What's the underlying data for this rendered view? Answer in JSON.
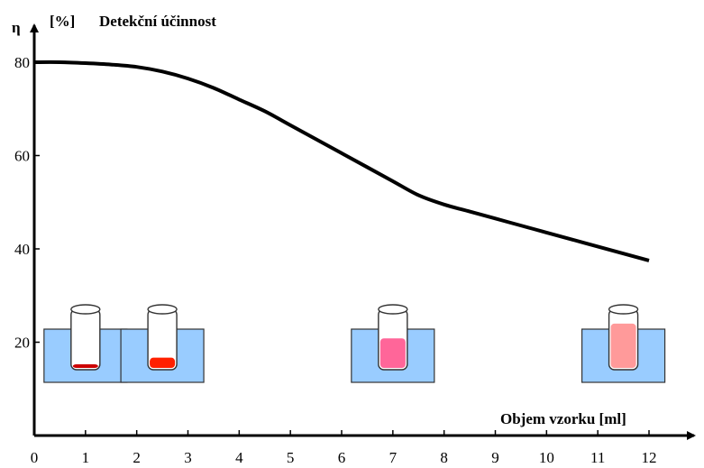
{
  "chart_data": {
    "type": "line",
    "y_symbol": "η",
    "y_unit": "[%]",
    "title": "Detekční účinnost",
    "xlabel": "Objem vzorku  [ml]",
    "xlim": [
      0,
      12
    ],
    "ylim": [
      0,
      80
    ],
    "x_ticks": [
      "0",
      "1",
      "2",
      "3",
      "4",
      "5",
      "6",
      "7",
      "8",
      "9",
      "10",
      "11",
      "12"
    ],
    "y_ticks": [
      "20",
      "40",
      "60",
      "80"
    ],
    "grid": false,
    "series": [
      {
        "x": [
          0,
          0.5,
          1,
          1.5,
          2,
          2.5,
          3,
          3.5,
          4,
          4.5,
          5,
          5.5,
          6,
          6.5,
          7,
          7.5,
          8,
          8.5,
          9,
          9.5,
          10,
          10.5,
          11,
          11.5,
          12
        ],
        "y": [
          80,
          80,
          79.8,
          79.5,
          79,
          78,
          76.5,
          74.5,
          72,
          69.5,
          66.5,
          63.5,
          60.5,
          57.5,
          54.5,
          51.5,
          49.5,
          48,
          46.5,
          45,
          43.5,
          42,
          40.5,
          39,
          37.5
        ]
      }
    ],
    "color": "#000000",
    "sample_vials": [
      {
        "x": 1,
        "liquid_fraction": 0.06,
        "liquid_color": "#cc0000"
      },
      {
        "x": 2.5,
        "liquid_fraction": 0.18,
        "liquid_color": "#ff2000"
      },
      {
        "x": 7,
        "liquid_fraction": 0.52,
        "liquid_color": "#ff6699"
      },
      {
        "x": 11.5,
        "liquid_fraction": 0.78,
        "liquid_color": "#ff9a9a"
      }
    ],
    "bath_color": "#99ccff"
  }
}
